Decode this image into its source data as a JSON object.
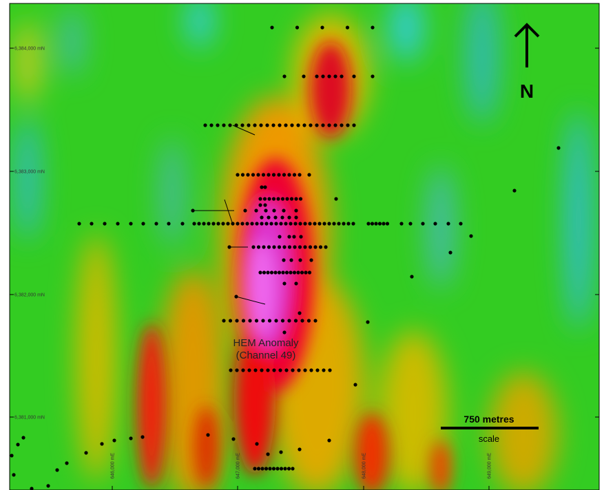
{
  "grid_labels": {
    "northings": [
      "6,384,000 mN",
      "6,383,000 mN",
      "6,382,000 mN",
      "6,381,000 mN"
    ],
    "eastings": [
      "646,000 mE",
      "647,000 mE",
      "648,000 mE",
      "649,000 mE"
    ]
  },
  "north_arrow": "N",
  "scale_bar": {
    "length": "750 metres",
    "caption": "scale"
  },
  "annotation": [
    "HEM Anomaly",
    "(Channel 49)"
  ]
}
